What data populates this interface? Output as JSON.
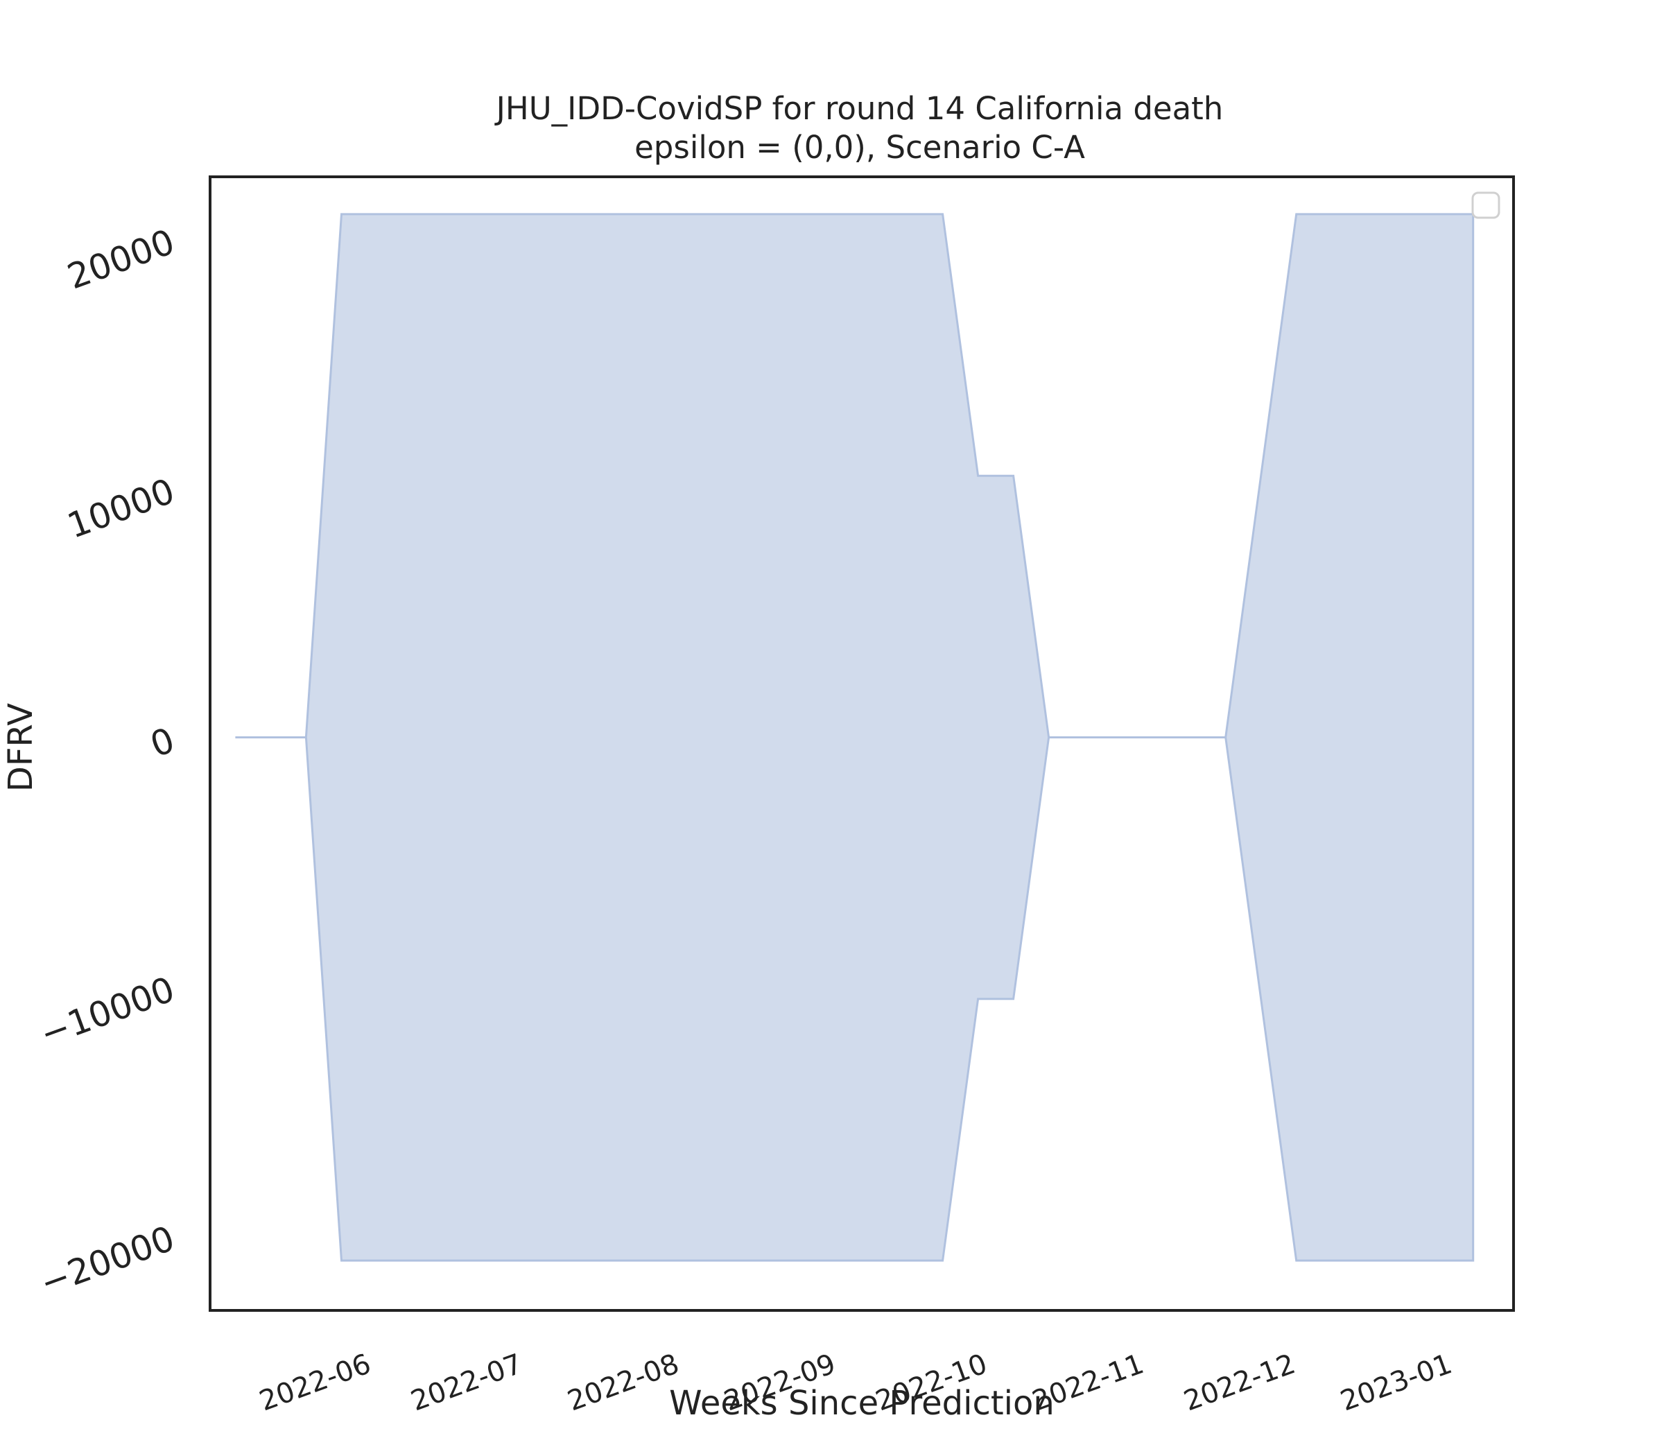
{
  "chart_data": {
    "type": "area",
    "title": "JHU_IDD-CovidSP for round 14 California death",
    "subtitle": "epsilon = (0,0), Scenario C-A",
    "xlabel": "Weeks Since Prediction",
    "ylabel": "DFRV",
    "xlim": [
      "2022-05-06",
      "2023-01-19"
    ],
    "ylim": [
      -23000,
      22500
    ],
    "x_ticks": [
      "2022-06",
      "2022-07",
      "2022-08",
      "2022-09",
      "2022-10",
      "2022-11",
      "2022-12",
      "2023-01"
    ],
    "x_tick_labels": [
      "2022-06",
      "2022-07",
      "2022-08",
      "2022-09",
      "2022-10",
      "2022-11",
      "2022-12",
      "2023-01"
    ],
    "y_ticks": [
      -20000,
      -10000,
      0,
      10000,
      20000
    ],
    "y_tick_labels": [
      "−20000",
      "−10000",
      "0",
      "10000",
      "20000"
    ],
    "grid": false,
    "legend": {
      "position": "top-right",
      "entries": []
    },
    "fill_color": "#b0c1df",
    "series": [
      {
        "x": [
          "2022-05-11",
          "2022-05-25",
          "2022-06-01",
          "2022-09-28",
          "2022-10-05",
          "2022-10-12",
          "2022-10-19",
          "2022-11-23",
          "2022-12-07",
          "2023-01-11"
        ],
        "upper": [
          0,
          0,
          21000,
          21000,
          10500,
          10500,
          0,
          0,
          21000,
          21000
        ],
        "lower": [
          0,
          0,
          -21000,
          -21000,
          -10500,
          -10500,
          0,
          0,
          -21000,
          -21000
        ]
      }
    ]
  }
}
